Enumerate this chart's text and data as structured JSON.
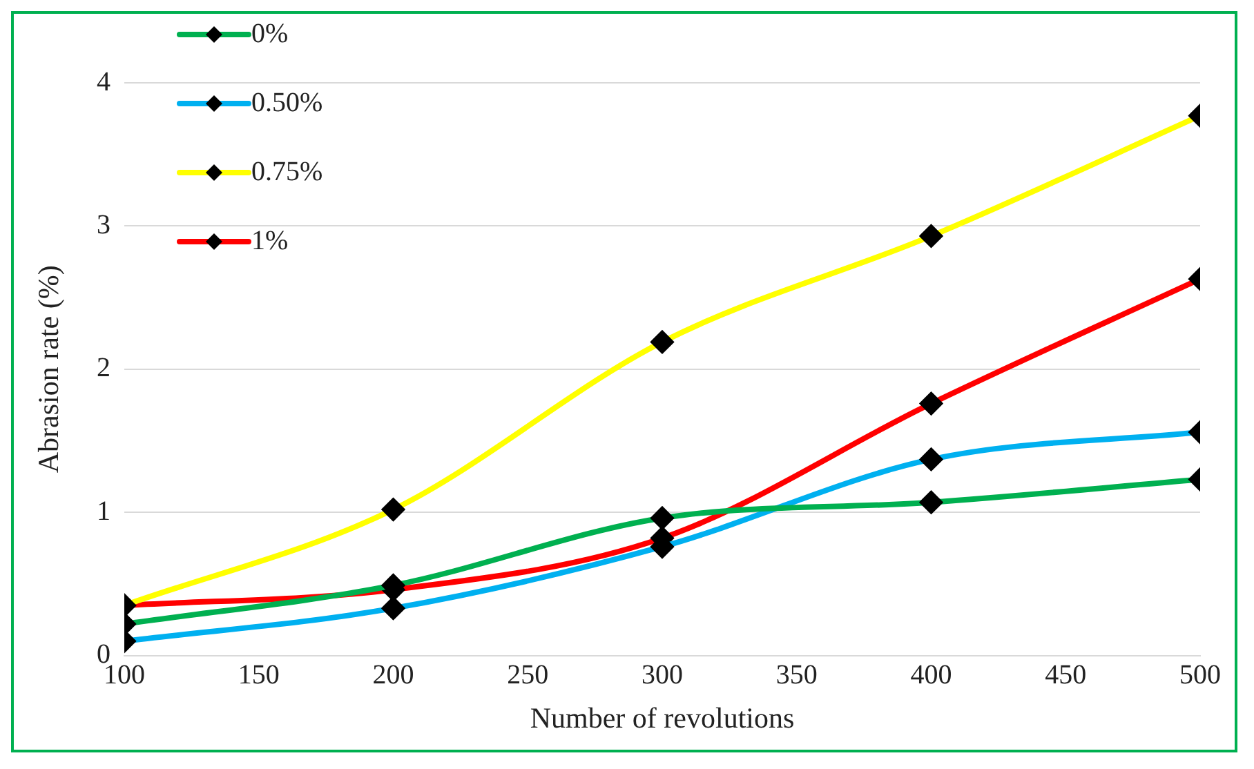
{
  "chart_data": {
    "type": "line",
    "xlabel": "Number of revolutions",
    "ylabel": "Abrasion rate (%)",
    "x": [
      100,
      200,
      300,
      400,
      500
    ],
    "series": [
      {
        "name": "0%",
        "color": "#00b050",
        "values": [
          0.22,
          0.49,
          0.96,
          1.07,
          1.23
        ]
      },
      {
        "name": "0.50%",
        "color": "#00b0f0",
        "values": [
          0.1,
          0.33,
          0.76,
          1.37,
          1.56
        ]
      },
      {
        "name": "0.75%",
        "color": "#ffff00",
        "values": [
          0.35,
          1.02,
          2.19,
          2.93,
          3.77
        ]
      },
      {
        "name": "1%",
        "color": "#ff0000",
        "values": [
          0.35,
          0.46,
          0.82,
          1.76,
          2.63
        ]
      }
    ],
    "xlim": [
      100,
      500
    ],
    "xticks": [
      100,
      150,
      200,
      250,
      300,
      350,
      400,
      450,
      500
    ],
    "ylim": [
      0,
      4
    ],
    "yticks": [
      0,
      1,
      2,
      3,
      4
    ],
    "grid": "y",
    "legend": "top left",
    "marker": "diamond",
    "line_style": "solid"
  }
}
